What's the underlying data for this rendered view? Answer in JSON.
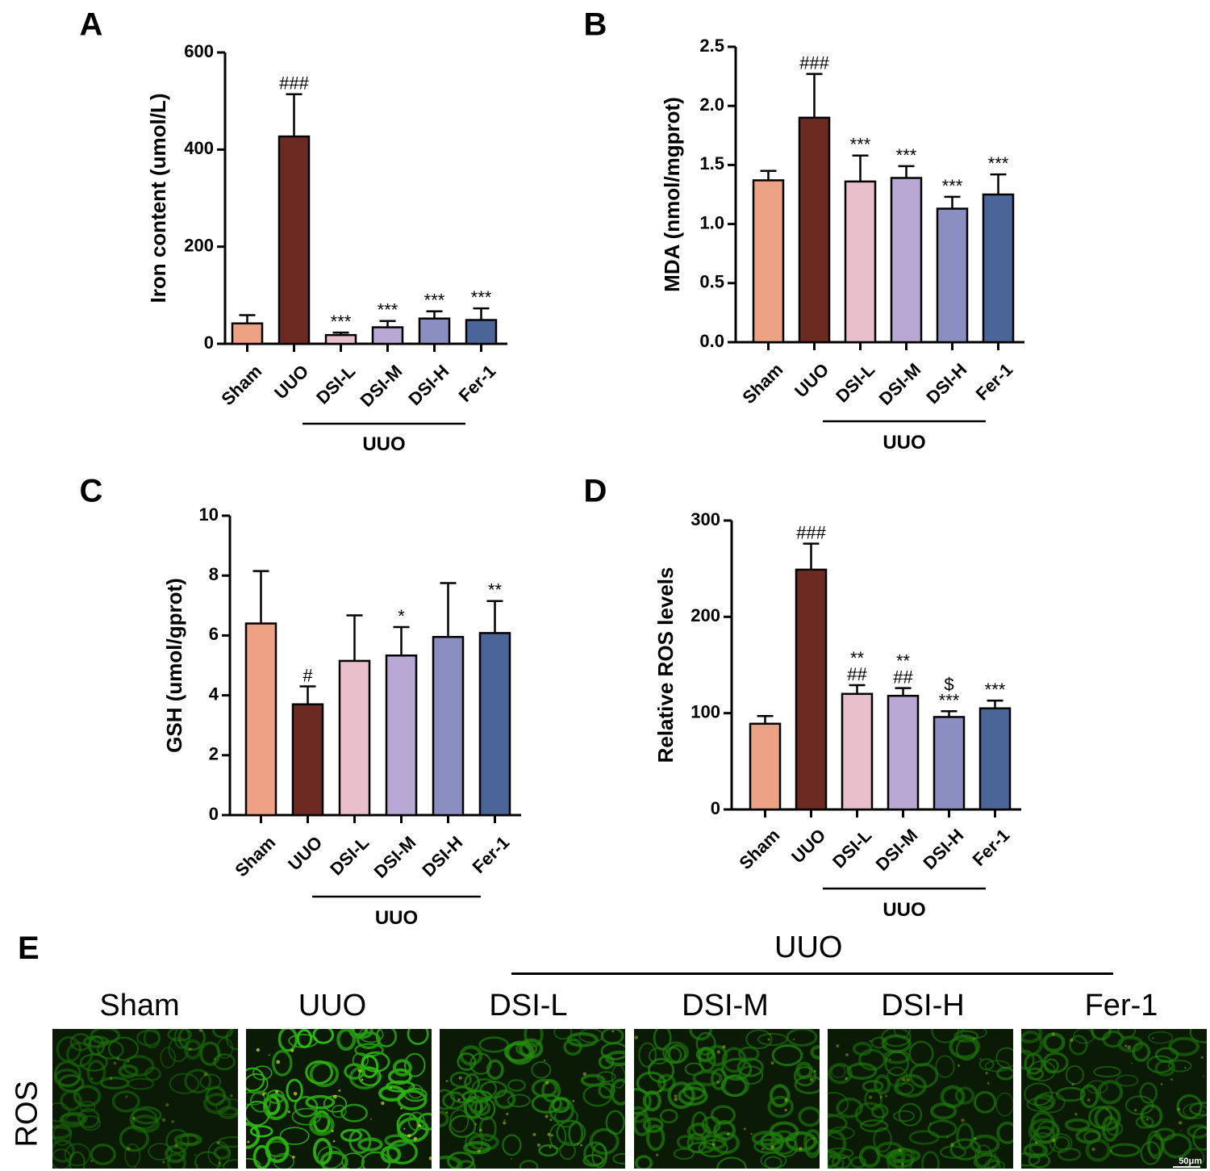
{
  "chart_data": [
    {
      "type": "bar",
      "panel": "A",
      "ylabel": "Iron content (umol/L)",
      "ylim": [
        0,
        600
      ],
      "yticks": [
        "0",
        "200",
        "400",
        "600"
      ],
      "yticks_values": [
        0,
        200,
        400,
        600
      ],
      "categories": [
        "Sham",
        "UUO",
        "DSI-L",
        "DSI-M",
        "DSI-H",
        "Fer-1"
      ],
      "values": [
        42,
        427,
        18,
        34,
        52,
        49
      ],
      "errors": [
        17,
        87,
        5,
        13,
        15,
        24
      ],
      "annotations": [
        "",
        "###",
        "***",
        "***",
        "***",
        "***"
      ],
      "group_label": "UUO"
    },
    {
      "type": "bar",
      "panel": "B",
      "ylabel": "MDA (nmol/mgprot)",
      "ylim": [
        0,
        2.5
      ],
      "yticks": [
        "0.0",
        "0.5",
        "1.0",
        "1.5",
        "2.0",
        "2.5"
      ],
      "yticks_values": [
        0,
        0.5,
        1.0,
        1.5,
        2.0,
        2.5
      ],
      "categories": [
        "Sham",
        "UUO",
        "DSI-L",
        "DSI-M",
        "DSI-H",
        "Fer-1"
      ],
      "values": [
        1.37,
        1.9,
        1.36,
        1.39,
        1.13,
        1.25
      ],
      "errors": [
        0.08,
        0.37,
        0.22,
        0.1,
        0.1,
        0.17
      ],
      "annotations": [
        "",
        "###",
        "***",
        "***",
        "***",
        "***"
      ],
      "group_label": "UUO"
    },
    {
      "type": "bar",
      "panel": "C",
      "ylabel": "GSH (umol/gprot)",
      "ylim": [
        0,
        10
      ],
      "yticks": [
        "0",
        "2",
        "4",
        "6",
        "8",
        "10"
      ],
      "yticks_values": [
        0,
        2,
        4,
        6,
        8,
        10
      ],
      "categories": [
        "Sham",
        "UUO",
        "DSI-L",
        "DSI-M",
        "DSI-H",
        "Fer-1"
      ],
      "values": [
        6.4,
        3.7,
        5.15,
        5.33,
        5.95,
        6.08
      ],
      "errors": [
        1.75,
        0.6,
        1.52,
        0.95,
        1.8,
        1.07
      ],
      "annotations": [
        "",
        "#",
        "",
        "*",
        "",
        "**"
      ],
      "group_label": "UUO"
    },
    {
      "type": "bar",
      "panel": "D",
      "ylabel": "Relative ROS levels",
      "ylim": [
        0,
        300
      ],
      "yticks": [
        "0",
        "100",
        "200",
        "300"
      ],
      "yticks_values": [
        0,
        100,
        200,
        300
      ],
      "categories": [
        "Sham",
        "UUO",
        "DSI-L",
        "DSI-M",
        "DSI-H",
        "Fer-1"
      ],
      "values": [
        89,
        249,
        120,
        118,
        96,
        105
      ],
      "errors": [
        8,
        27,
        9,
        8,
        6,
        8
      ],
      "annotations": [
        "",
        "###",
        "**\n##",
        "**\n##",
        "$\n***",
        "***"
      ],
      "group_label": "UUO"
    }
  ],
  "colors": [
    "#eda383",
    "#6b2b22",
    "#e8bfca",
    "#b8a7d2",
    "#8b8ec0",
    "#4b6599"
  ],
  "panel_e": {
    "letter": "E",
    "group_label": "UUO",
    "row_label": "ROS",
    "columns": [
      "Sham",
      "UUO",
      "DSI-L",
      "DSI-M",
      "DSI-H",
      "Fer-1"
    ],
    "scale_bar": "50μm",
    "intensity": [
      0.35,
      0.85,
      0.55,
      0.5,
      0.4,
      0.42
    ]
  }
}
